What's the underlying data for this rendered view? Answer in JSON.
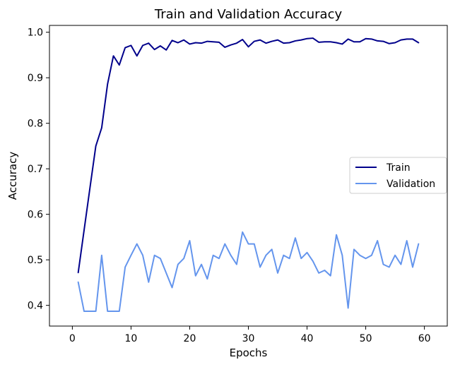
{
  "chart_data": {
    "type": "line",
    "title": "Train and Validation Accuracy",
    "xlabel": "Epochs",
    "ylabel": "Accuracy",
    "xlim": [
      -3.9,
      63.9
    ],
    "ylim": [
      0.3545,
      1.015
    ],
    "xticks": [
      0,
      10,
      20,
      30,
      40,
      50,
      60
    ],
    "yticks": [
      0.4,
      0.5,
      0.6,
      0.7,
      0.8,
      0.9,
      1.0
    ],
    "ytick_labels": [
      "0.4",
      "0.5",
      "0.6",
      "0.7",
      "0.8",
      "0.9",
      "1.0"
    ],
    "grid": false,
    "legend_position": "center-right",
    "x": [
      1,
      2,
      3,
      4,
      5,
      6,
      7,
      8,
      9,
      10,
      11,
      12,
      13,
      14,
      15,
      16,
      17,
      18,
      19,
      20,
      21,
      22,
      23,
      24,
      25,
      26,
      27,
      28,
      29,
      30,
      31,
      32,
      33,
      34,
      35,
      36,
      37,
      38,
      39,
      40,
      41,
      42,
      43,
      44,
      45,
      46,
      47,
      48,
      49,
      50,
      51,
      52,
      53,
      54,
      55,
      56,
      57,
      58,
      59
    ],
    "series": [
      {
        "name": "Train",
        "color": "#00008b",
        "values": [
          0.472,
          0.565,
          0.658,
          0.75,
          0.79,
          0.886,
          0.948,
          0.928,
          0.966,
          0.971,
          0.948,
          0.971,
          0.976,
          0.962,
          0.97,
          0.961,
          0.982,
          0.977,
          0.983,
          0.974,
          0.977,
          0.976,
          0.98,
          0.979,
          0.978,
          0.967,
          0.972,
          0.976,
          0.984,
          0.968,
          0.98,
          0.983,
          0.976,
          0.98,
          0.983,
          0.976,
          0.977,
          0.981,
          0.983,
          0.986,
          0.987,
          0.978,
          0.979,
          0.979,
          0.977,
          0.974,
          0.985,
          0.979,
          0.979,
          0.986,
          0.985,
          0.981,
          0.98,
          0.975,
          0.977,
          0.983,
          0.985,
          0.985,
          0.977
        ]
      },
      {
        "name": "Validation",
        "color": "#6495ed",
        "values": [
          0.451,
          0.387,
          0.387,
          0.387,
          0.51,
          0.387,
          0.387,
          0.387,
          0.484,
          0.51,
          0.535,
          0.51,
          0.451,
          0.51,
          0.503,
          0.471,
          0.439,
          0.49,
          0.503,
          0.542,
          0.465,
          0.49,
          0.458,
          0.51,
          0.503,
          0.535,
          0.51,
          0.49,
          0.561,
          0.535,
          0.535,
          0.484,
          0.51,
          0.523,
          0.471,
          0.51,
          0.503,
          0.548,
          0.503,
          0.516,
          0.497,
          0.471,
          0.477,
          0.465,
          0.555,
          0.51,
          0.394,
          0.523,
          0.51,
          0.503,
          0.51,
          0.542,
          0.49,
          0.484,
          0.51,
          0.49,
          0.542,
          0.484,
          0.535
        ]
      }
    ]
  }
}
